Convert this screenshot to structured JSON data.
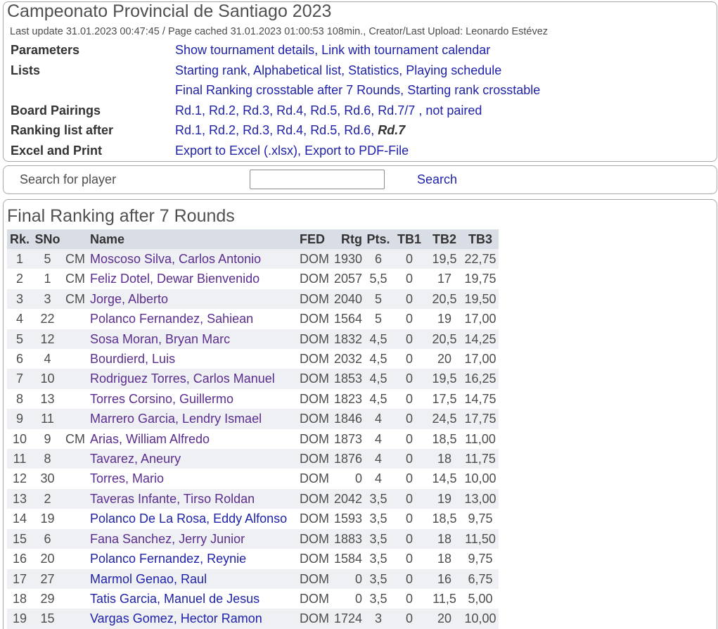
{
  "header": {
    "title": "Campeonato Provincial de Santiago 2023",
    "info": "Last update 31.01.2023 00:47:45 / Page cached 31.01.2023 01:00:53 108min., Creator/Last Upload: Leonardo Estévez"
  },
  "nav": [
    {
      "label": "Parameters",
      "items": [
        {
          "text": "Show tournament details",
          "after": ", "
        },
        {
          "text": "Link with tournament calendar"
        }
      ]
    },
    {
      "label": "Lists",
      "items": [
        {
          "text": "Starting rank",
          "after": ", "
        },
        {
          "text": "Alphabetical list",
          "after": ", "
        },
        {
          "text": "Statistics",
          "after": ", "
        },
        {
          "text": "Playing schedule"
        }
      ]
    },
    {
      "label": "",
      "items": [
        {
          "text": "Final Ranking crosstable after 7 Rounds",
          "after": ", "
        },
        {
          "text": "Starting rank crosstable"
        }
      ]
    },
    {
      "label": "Board Pairings",
      "items": [
        {
          "text": "Rd.1",
          "after": ", "
        },
        {
          "text": "Rd.2",
          "after": ", "
        },
        {
          "text": "Rd.3",
          "after": ", "
        },
        {
          "text": "Rd.4",
          "after": ", "
        },
        {
          "text": "Rd.5",
          "after": ", "
        },
        {
          "text": "Rd.6",
          "after": ", "
        },
        {
          "text": "Rd.7/7",
          "after": " , "
        },
        {
          "text": "not paired"
        }
      ]
    },
    {
      "label": "Ranking list after",
      "items": [
        {
          "text": "Rd.1",
          "after": ", "
        },
        {
          "text": "Rd.2",
          "after": ", "
        },
        {
          "text": "Rd.3",
          "after": ", "
        },
        {
          "text": "Rd.4",
          "after": ", "
        },
        {
          "text": "Rd.5",
          "after": ", "
        },
        {
          "text": "Rd.6",
          "after": ", "
        },
        {
          "text": "Rd.7",
          "current": true
        }
      ]
    },
    {
      "label": "Excel and Print",
      "items": [
        {
          "text": "Export to Excel (.xlsx)",
          "after": ", "
        },
        {
          "text": "Export to PDF-File"
        }
      ]
    }
  ],
  "search": {
    "label": "Search for player",
    "button": "Search"
  },
  "ranking": {
    "title": "Final Ranking after 7 Rounds",
    "columns": [
      "Rk.",
      "SNo",
      "",
      "Name",
      "FED",
      "Rtg",
      "Pts.",
      "TB1",
      "TB2",
      "TB3"
    ],
    "rows": [
      {
        "rk": "1",
        "sno": "5",
        "title": "CM",
        "name": "Moscoso Silva, Carlos Antonio",
        "fed": "DOM",
        "rtg": "1930",
        "pts": "6",
        "tb1": "0",
        "tb2": "19,5",
        "tb3": "22,75",
        "visited": true
      },
      {
        "rk": "2",
        "sno": "1",
        "title": "CM",
        "name": "Feliz Dotel, Dewar Bienvenido",
        "fed": "DOM",
        "rtg": "2057",
        "pts": "5,5",
        "tb1": "0",
        "tb2": "17",
        "tb3": "19,75",
        "visited": true
      },
      {
        "rk": "3",
        "sno": "3",
        "title": "CM",
        "name": "Jorge, Alberto",
        "fed": "DOM",
        "rtg": "2040",
        "pts": "5",
        "tb1": "0",
        "tb2": "20,5",
        "tb3": "19,50",
        "visited": true
      },
      {
        "rk": "4",
        "sno": "22",
        "title": "",
        "name": "Polanco Fernandez, Sahiean",
        "fed": "DOM",
        "rtg": "1564",
        "pts": "5",
        "tb1": "0",
        "tb2": "19",
        "tb3": "17,00",
        "visited": true
      },
      {
        "rk": "5",
        "sno": "12",
        "title": "",
        "name": "Sosa Moran, Bryan Marc",
        "fed": "DOM",
        "rtg": "1832",
        "pts": "4,5",
        "tb1": "0",
        "tb2": "20,5",
        "tb3": "14,25",
        "visited": true
      },
      {
        "rk": "6",
        "sno": "4",
        "title": "",
        "name": "Bourdierd, Luis",
        "fed": "DOM",
        "rtg": "2032",
        "pts": "4,5",
        "tb1": "0",
        "tb2": "20",
        "tb3": "17,00",
        "visited": true
      },
      {
        "rk": "7",
        "sno": "10",
        "title": "",
        "name": "Rodriguez Torres, Carlos Manuel",
        "fed": "DOM",
        "rtg": "1853",
        "pts": "4,5",
        "tb1": "0",
        "tb2": "19,5",
        "tb3": "16,25",
        "visited": true
      },
      {
        "rk": "8",
        "sno": "13",
        "title": "",
        "name": "Torres Corsino, Guillermo",
        "fed": "DOM",
        "rtg": "1823",
        "pts": "4,5",
        "tb1": "0",
        "tb2": "17,5",
        "tb3": "14,75",
        "visited": true
      },
      {
        "rk": "9",
        "sno": "11",
        "title": "",
        "name": "Marrero Garcia, Lendry Ismael",
        "fed": "DOM",
        "rtg": "1846",
        "pts": "4",
        "tb1": "0",
        "tb2": "24,5",
        "tb3": "17,75",
        "visited": true
      },
      {
        "rk": "10",
        "sno": "9",
        "title": "CM",
        "name": "Arias, William Alfredo",
        "fed": "DOM",
        "rtg": "1873",
        "pts": "4",
        "tb1": "0",
        "tb2": "18,5",
        "tb3": "11,00",
        "visited": true
      },
      {
        "rk": "11",
        "sno": "8",
        "title": "",
        "name": "Tavarez, Aneury",
        "fed": "DOM",
        "rtg": "1876",
        "pts": "4",
        "tb1": "0",
        "tb2": "18",
        "tb3": "11,75",
        "visited": true
      },
      {
        "rk": "12",
        "sno": "30",
        "title": "",
        "name": "Torres, Mario",
        "fed": "DOM",
        "rtg": "0",
        "pts": "4",
        "tb1": "0",
        "tb2": "14,5",
        "tb3": "10,00",
        "visited": true
      },
      {
        "rk": "13",
        "sno": "2",
        "title": "",
        "name": "Taveras Infante, Tirso Roldan",
        "fed": "DOM",
        "rtg": "2042",
        "pts": "3,5",
        "tb1": "0",
        "tb2": "19",
        "tb3": "13,00",
        "visited": true
      },
      {
        "rk": "14",
        "sno": "19",
        "title": "",
        "name": "Polanco De La Rosa, Eddy Alfonso",
        "fed": "DOM",
        "rtg": "1593",
        "pts": "3,5",
        "tb1": "0",
        "tb2": "18,5",
        "tb3": "9,75",
        "visited": false
      },
      {
        "rk": "15",
        "sno": "6",
        "title": "",
        "name": "Fana Sanchez, Jerry Junior",
        "fed": "DOM",
        "rtg": "1883",
        "pts": "3,5",
        "tb1": "0",
        "tb2": "18",
        "tb3": "11,50",
        "visited": true
      },
      {
        "rk": "16",
        "sno": "20",
        "title": "",
        "name": "Polanco Fernandez, Reynie",
        "fed": "DOM",
        "rtg": "1584",
        "pts": "3,5",
        "tb1": "0",
        "tb2": "18",
        "tb3": "9,75",
        "visited": false
      },
      {
        "rk": "17",
        "sno": "27",
        "title": "",
        "name": "Marmol Genao, Raul",
        "fed": "DOM",
        "rtg": "0",
        "pts": "3,5",
        "tb1": "0",
        "tb2": "16",
        "tb3": "6,75",
        "visited": false
      },
      {
        "rk": "18",
        "sno": "29",
        "title": "",
        "name": "Tatis Garcia, Manuel de Jesus",
        "fed": "DOM",
        "rtg": "0",
        "pts": "3,5",
        "tb1": "0",
        "tb2": "11,5",
        "tb3": "5,00",
        "visited": false
      },
      {
        "rk": "19",
        "sno": "15",
        "title": "",
        "name": "Vargas Gomez, Hector Ramon",
        "fed": "DOM",
        "rtg": "1724",
        "pts": "3",
        "tb1": "0",
        "tb2": "20",
        "tb3": "10,00",
        "visited": false
      }
    ]
  },
  "colors": {
    "link": "#1f22a8",
    "link_visited": "#5b2d8f",
    "text": "#4d4d4d",
    "heading": "#505050",
    "label": "#333333",
    "table_header_bg": "#d9dde5",
    "row_alt_bg": "#eef0f3",
    "panel_border": "#a8a8a8"
  }
}
